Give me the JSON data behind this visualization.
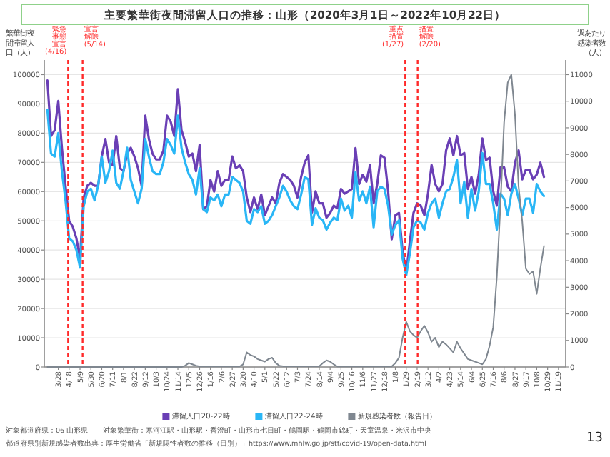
{
  "chart_data": {
    "type": "line",
    "title": "主要繁華街夜間滞留人口の推移：山形（2020年3月1日～2022年10月22日）",
    "ylabel": "繁華街夜間滞留人口（人）",
    "y2label": "週あたり感染者数（人）",
    "x": [
      "2020-03-07",
      "2020-03-14",
      "2020-03-21",
      "2020-03-28",
      "2020-04-04",
      "2020-04-11",
      "2020-04-18",
      "2020-04-25",
      "2020-05-02",
      "2020-05-09",
      "2020-05-16",
      "2020-05-23",
      "2020-05-30",
      "2020-06-06",
      "2020-06-13",
      "2020-06-20",
      "2020-06-27",
      "2020-07-04",
      "2020-07-11",
      "2020-07-18",
      "2020-07-25",
      "2020-08-01",
      "2020-08-08",
      "2020-08-15",
      "2020-08-22",
      "2020-08-29",
      "2020-09-05",
      "2020-09-12",
      "2020-09-19",
      "2020-09-26",
      "2020-10-03",
      "2020-10-10",
      "2020-10-17",
      "2020-10-24",
      "2020-10-31",
      "2020-11-07",
      "2020-11-14",
      "2020-11-21",
      "2020-11-28",
      "2020-12-05",
      "2020-12-12",
      "2020-12-19",
      "2020-12-26",
      "2021-01-02",
      "2021-01-09",
      "2021-01-16",
      "2021-01-23",
      "2021-01-30",
      "2021-02-06",
      "2021-02-13",
      "2021-02-20",
      "2021-02-27",
      "2021-03-06",
      "2021-03-13",
      "2021-03-20",
      "2021-03-27",
      "2021-04-03",
      "2021-04-10",
      "2021-04-17",
      "2021-04-24",
      "2021-05-01",
      "2021-05-08",
      "2021-05-15",
      "2021-05-22",
      "2021-05-29",
      "2021-06-05",
      "2021-06-12",
      "2021-06-19",
      "2021-06-26",
      "2021-07-03",
      "2021-07-10",
      "2021-07-17",
      "2021-07-24",
      "2021-07-31",
      "2021-08-07",
      "2021-08-14",
      "2021-08-21",
      "2021-08-28",
      "2021-09-04",
      "2021-09-11",
      "2021-09-18",
      "2021-09-25",
      "2021-10-02",
      "2021-10-09",
      "2021-10-16",
      "2021-10-23",
      "2021-10-30",
      "2021-11-06",
      "2021-11-13",
      "2021-11-20",
      "2021-11-27",
      "2021-12-04",
      "2021-12-11",
      "2021-12-18",
      "2021-12-25",
      "2022-01-01",
      "2022-01-08",
      "2022-01-15",
      "2022-01-22",
      "2022-01-29",
      "2022-02-05",
      "2022-02-12",
      "2022-02-19",
      "2022-02-26",
      "2022-03-05",
      "2022-03-12",
      "2022-03-19",
      "2022-03-26",
      "2022-04-02",
      "2022-04-09",
      "2022-04-16",
      "2022-04-23",
      "2022-04-30",
      "2022-05-07",
      "2022-05-14",
      "2022-05-21",
      "2022-05-28",
      "2022-06-04",
      "2022-06-11",
      "2022-06-18",
      "2022-06-25",
      "2022-07-02",
      "2022-07-09",
      "2022-07-16",
      "2022-07-23",
      "2022-07-30",
      "2022-08-06",
      "2022-08-13",
      "2022-08-20",
      "2022-08-27",
      "2022-09-03",
      "2022-09-10",
      "2022-09-17",
      "2022-09-24",
      "2022-10-01",
      "2022-10-08",
      "2022-10-15",
      "2022-10-22"
    ],
    "xlim": [
      "2020-03-01",
      "2022-12-03"
    ],
    "xticks": [
      {
        "value": "2020-03-28",
        "label": "3/28"
      },
      {
        "value": "2020-04-18",
        "label": "4/18"
      },
      {
        "value": "2020-05-09",
        "label": "5/9"
      },
      {
        "value": "2020-05-30",
        "label": "5/30"
      },
      {
        "value": "2020-06-20",
        "label": "6/20"
      },
      {
        "value": "2020-07-11",
        "label": "7/11"
      },
      {
        "value": "2020-08-01",
        "label": "8/1"
      },
      {
        "value": "2020-08-22",
        "label": "8/22"
      },
      {
        "value": "2020-09-12",
        "label": "9/12"
      },
      {
        "value": "2020-10-03",
        "label": "10/3"
      },
      {
        "value": "2020-10-24",
        "label": "10/24"
      },
      {
        "value": "2020-11-14",
        "label": "11/14"
      },
      {
        "value": "2020-12-05",
        "label": "12/5"
      },
      {
        "value": "2020-12-26",
        "label": "12/26"
      },
      {
        "value": "2021-01-16",
        "label": "1/16"
      },
      {
        "value": "2021-02-06",
        "label": "2/6"
      },
      {
        "value": "2021-02-27",
        "label": "2/27"
      },
      {
        "value": "2021-03-20",
        "label": "3/20"
      },
      {
        "value": "2021-04-10",
        "label": "4/10"
      },
      {
        "value": "2021-05-01",
        "label": "5/1"
      },
      {
        "value": "2021-05-22",
        "label": "5/22"
      },
      {
        "value": "2021-06-12",
        "label": "6/12"
      },
      {
        "value": "2021-07-03",
        "label": "7/3"
      },
      {
        "value": "2021-07-24",
        "label": "7/24"
      },
      {
        "value": "2021-08-14",
        "label": "8/14"
      },
      {
        "value": "2021-09-04",
        "label": "9/4"
      },
      {
        "value": "2021-09-25",
        "label": "9/25"
      },
      {
        "value": "2021-10-16",
        "label": "10/16"
      },
      {
        "value": "2021-11-06",
        "label": "11/6"
      },
      {
        "value": "2021-11-27",
        "label": "11/27"
      },
      {
        "value": "2021-12-18",
        "label": "12/18"
      },
      {
        "value": "2022-01-08",
        "label": "1/8"
      },
      {
        "value": "2022-01-29",
        "label": "1/29"
      },
      {
        "value": "2022-02-19",
        "label": "2/19"
      },
      {
        "value": "2022-03-12",
        "label": "3/12"
      },
      {
        "value": "2022-04-02",
        "label": "4/2"
      },
      {
        "value": "2022-04-23",
        "label": "4/23"
      },
      {
        "value": "2022-05-14",
        "label": "5/14"
      },
      {
        "value": "2022-06-04",
        "label": "6/4"
      },
      {
        "value": "2022-06-25",
        "label": "6/25"
      },
      {
        "value": "2022-07-16",
        "label": "7/16"
      },
      {
        "value": "2022-08-06",
        "label": "8/6"
      },
      {
        "value": "2022-08-27",
        "label": "8/27"
      },
      {
        "value": "2022-09-17",
        "label": "9/17"
      },
      {
        "value": "2022-10-08",
        "label": "10/8"
      },
      {
        "value": "2022-10-29",
        "label": "10/29"
      },
      {
        "value": "2022-11-19",
        "label": "11/19"
      }
    ],
    "ylim": [
      0,
      105000
    ],
    "yticks": [
      0,
      10000,
      20000,
      30000,
      40000,
      50000,
      60000,
      70000,
      80000,
      90000,
      100000
    ],
    "y2lim": [
      0,
      11550
    ],
    "y2ticks": [
      0,
      1000,
      2000,
      3000,
      4000,
      5000,
      6000,
      7000,
      8000,
      9000,
      10000,
      11000
    ],
    "grid": "y",
    "legend": "bottom",
    "series": [
      {
        "name": "滞留人口20-22時",
        "color": "#6a3fb5",
        "values": [
          98000,
          79000,
          81000,
          91000,
          75000,
          62000,
          50000,
          48000,
          44000,
          37000,
          58000,
          62000,
          63000,
          62000,
          62000,
          72000,
          78000,
          70000,
          69000,
          79000,
          68000,
          67000,
          73000,
          75000,
          72000,
          68000,
          62000,
          86000,
          78000,
          73000,
          71000,
          71000,
          74000,
          86000,
          84000,
          79000,
          95000,
          81000,
          77000,
          72000,
          73000,
          67000,
          76000,
          54000,
          55000,
          64000,
          60000,
          67000,
          62000,
          64000,
          64000,
          72000,
          68000,
          69000,
          67000,
          58000,
          53000,
          58000,
          54000,
          59000,
          52000,
          55000,
          58000,
          56000,
          63000,
          66000,
          65000,
          64000,
          62000,
          58000,
          65000,
          70000,
          72400,
          52900,
          60100,
          56000,
          56000,
          51100,
          52700,
          55200,
          54300,
          60900,
          59300,
          60100,
          60900,
          74900,
          62600,
          65800,
          63400,
          69100,
          56000,
          62600,
          72400,
          71600,
          60100,
          43700,
          51900,
          52700,
          39600,
          32200,
          42900,
          52700,
          56000,
          55200,
          51900,
          59300,
          69100,
          62600,
          60100,
          62600,
          74100,
          78200,
          72400,
          79000,
          72400,
          73200,
          60900,
          65000,
          59300,
          65800,
          78200,
          70800,
          71600,
          60100,
          55200,
          68300,
          68300,
          61700,
          60100,
          69900,
          74100,
          64200,
          67500,
          67500,
          64200,
          65800,
          69900,
          65000
        ]
      },
      {
        "name": "滞留人口22-24時",
        "color": "#29b6f6",
        "values": [
          88000,
          73000,
          72000,
          80000,
          67000,
          57000,
          44000,
          43000,
          40000,
          34000,
          55000,
          60000,
          61000,
          57000,
          62000,
          72000,
          63000,
          67000,
          74000,
          63000,
          61000,
          67000,
          75000,
          64000,
          60000,
          56000,
          61000,
          78000,
          72000,
          67000,
          66000,
          66000,
          70000,
          78000,
          76000,
          73000,
          86000,
          75000,
          70000,
          66000,
          64000,
          59000,
          68000,
          54000,
          53000,
          58000,
          57000,
          59000,
          55000,
          59000,
          59000,
          65000,
          64000,
          63000,
          60000,
          50000,
          49000,
          54000,
          53000,
          55000,
          49000,
          50000,
          52000,
          55000,
          58000,
          62000,
          60000,
          57000,
          55000,
          54000,
          59000,
          65000,
          64200,
          48600,
          54300,
          51100,
          50200,
          47000,
          49400,
          51100,
          50200,
          57600,
          53500,
          55200,
          51100,
          66700,
          56800,
          60100,
          56000,
          61700,
          47800,
          60100,
          61700,
          60900,
          55200,
          45300,
          48600,
          50200,
          37100,
          31400,
          38800,
          47800,
          50200,
          49400,
          47000,
          52700,
          56000,
          57600,
          51100,
          56000,
          60100,
          60900,
          65000,
          70800,
          56000,
          63400,
          51100,
          60900,
          53500,
          60100,
          73200,
          62600,
          62600,
          56000,
          47000,
          59300,
          57600,
          51900,
          59300,
          62600,
          57600,
          51900,
          57600,
          57600,
          52700,
          62600,
          60100,
          58500
        ]
      },
      {
        "name": "新規感染者数（報告日）",
        "color": "#7f8790",
        "axis": "y2",
        "values": [
          0,
          0,
          0,
          0,
          0,
          0,
          0,
          0,
          0,
          0,
          0,
          0,
          0,
          0,
          0,
          0,
          0,
          0,
          0,
          0,
          0,
          0,
          0,
          0,
          0,
          0,
          0,
          0,
          0,
          0,
          0,
          0,
          0,
          0,
          0,
          0,
          0,
          0,
          50,
          150,
          100,
          50,
          20,
          20,
          20,
          20,
          20,
          20,
          20,
          20,
          20,
          20,
          20,
          20,
          100,
          550,
          450,
          400,
          300,
          250,
          200,
          300,
          350,
          150,
          50,
          30,
          30,
          30,
          30,
          30,
          30,
          30,
          30,
          30,
          30,
          30,
          150,
          250,
          200,
          100,
          20,
          20,
          20,
          20,
          20,
          20,
          20,
          20,
          20,
          20,
          20,
          20,
          20,
          20,
          20,
          20,
          150,
          350,
          1100,
          1700,
          1350,
          1200,
          1100,
          1350,
          1550,
          1300,
          950,
          1100,
          750,
          950,
          850,
          700,
          550,
          950,
          700,
          500,
          300,
          250,
          200,
          150,
          100,
          300,
          800,
          1500,
          3400,
          6100,
          9200,
          10700,
          11000,
          9500,
          6800,
          5500,
          3700,
          3500,
          3600,
          2750,
          3700,
          4550
        ]
      }
    ],
    "ref_lines": [
      {
        "axis": "x",
        "value": "2020-04-16",
        "label": "緊急事態宣言(4/16)",
        "color": "#ff2a2a",
        "line_style": "dashed"
      },
      {
        "axis": "x",
        "value": "2020-05-14",
        "label": "宣言解除(5/14)",
        "color": "#ff2a2a",
        "line_style": "dashed"
      },
      {
        "axis": "x",
        "value": "2022-01-27",
        "label": "重点措置(1/27)",
        "color": "#ff2a2a",
        "line_style": "dashed"
      },
      {
        "axis": "x",
        "value": "2022-02-20",
        "label": "措置解除(2/20)",
        "color": "#ff2a2a",
        "line_style": "dashed"
      }
    ],
    "annotations": [
      "対象都道府県：06 山形県",
      "対象繁華街：寒河江駅・山形駅・香澄町・山形市七日町・鶴岡駅・鶴岡市錦町・天童温泉・米沢市中央",
      "都道府県別新規感染者数出典：厚生労働省「新規陽性者数の推移（日別）」https://www.mhlw.go.jp/stf/covid-19/open-data.html",
      "13"
    ]
  }
}
